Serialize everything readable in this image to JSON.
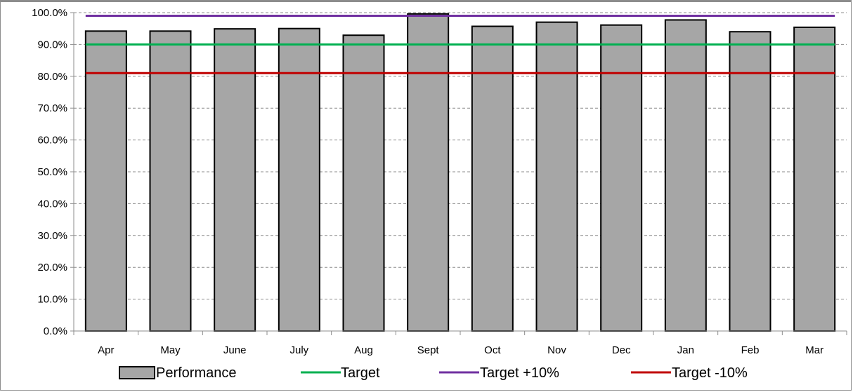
{
  "chart_data": {
    "type": "bar",
    "categories": [
      "Apr",
      "May",
      "June",
      "July",
      "Aug",
      "Sept",
      "Oct",
      "Nov",
      "Dec",
      "Jan",
      "Feb",
      "Mar"
    ],
    "ylim": [
      0,
      100
    ],
    "y_ticks": [
      "0.0%",
      "10.0%",
      "20.0%",
      "30.0%",
      "40.0%",
      "50.0%",
      "60.0%",
      "70.0%",
      "80.0%",
      "90.0%",
      "100.0%"
    ],
    "grid": true,
    "legend_position": "bottom",
    "series": [
      {
        "name": "Performance",
        "kind": "bar",
        "color": "#a6a6a6",
        "values": [
          94.2,
          94.2,
          94.9,
          95.0,
          92.9,
          99.6,
          95.7,
          97.0,
          96.1,
          97.7,
          94.0,
          95.4
        ]
      },
      {
        "name": "Target",
        "kind": "line",
        "color": "#00b050",
        "values": [
          90,
          90,
          90,
          90,
          90,
          90,
          90,
          90,
          90,
          90,
          90,
          90
        ]
      },
      {
        "name": "Target +10%",
        "kind": "line",
        "color": "#7030a0",
        "values": [
          99,
          99,
          99,
          99,
          99,
          99,
          99,
          99,
          99,
          99,
          99,
          99
        ]
      },
      {
        "name": "Target -10%",
        "kind": "line",
        "color": "#c00000",
        "values": [
          81,
          81,
          81,
          81,
          81,
          81,
          81,
          81,
          81,
          81,
          81,
          81
        ]
      }
    ]
  }
}
